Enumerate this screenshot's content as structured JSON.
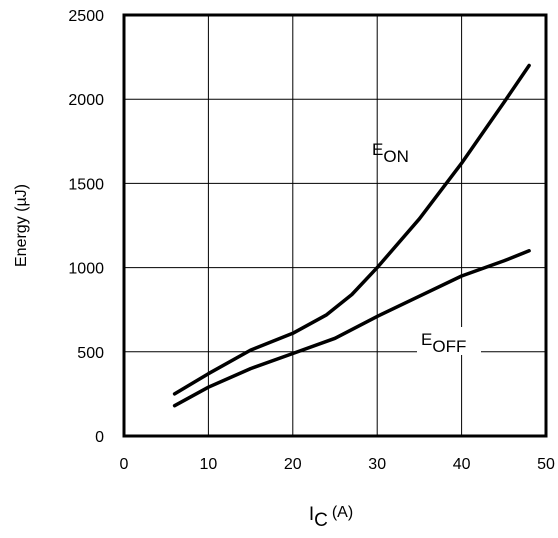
{
  "chart_data": {
    "type": "line",
    "title": "",
    "xlabel": {
      "main": "I",
      "sub": "C",
      "unit": "(A)"
    },
    "ylabel": "Energy (µJ)",
    "xlim": [
      0,
      50
    ],
    "ylim": [
      0,
      2500
    ],
    "xticks": [
      0,
      10,
      20,
      30,
      40,
      50
    ],
    "yticks": [
      0,
      500,
      1000,
      1500,
      2000,
      2500
    ],
    "grid": true,
    "series": [
      {
        "name": "E_ON",
        "label": {
          "main": "E",
          "sub": "ON"
        },
        "color": "#000000",
        "points": [
          [
            6,
            250
          ],
          [
            10,
            370
          ],
          [
            15,
            510
          ],
          [
            20,
            610
          ],
          [
            24,
            720
          ],
          [
            27,
            840
          ],
          [
            30,
            1000
          ],
          [
            35,
            1290
          ],
          [
            40,
            1620
          ],
          [
            45,
            1980
          ],
          [
            48,
            2200
          ]
        ]
      },
      {
        "name": "E_OFF",
        "label": {
          "main": "E",
          "sub": "OFF"
        },
        "color": "#000000",
        "points": [
          [
            6,
            180
          ],
          [
            10,
            290
          ],
          [
            15,
            400
          ],
          [
            20,
            490
          ],
          [
            25,
            580
          ],
          [
            30,
            710
          ],
          [
            35,
            830
          ],
          [
            40,
            950
          ],
          [
            45,
            1040
          ],
          [
            48,
            1100
          ]
        ]
      }
    ]
  }
}
